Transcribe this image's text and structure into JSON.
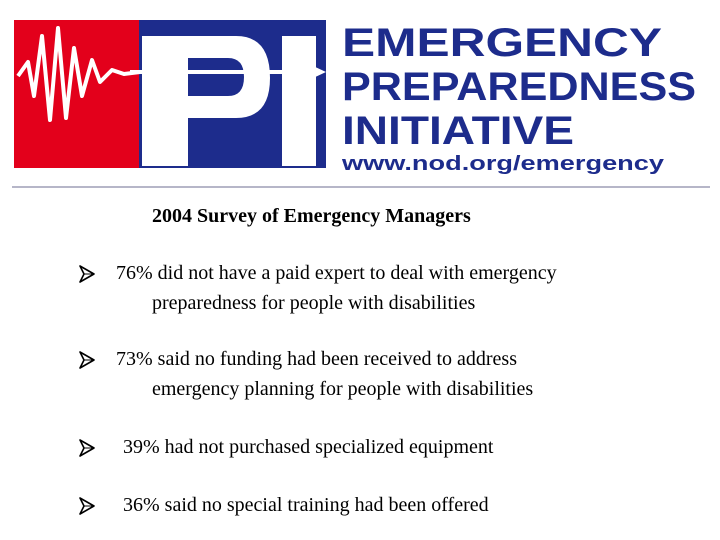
{
  "logo": {
    "title_line1": "EMERGENCY",
    "title_line2": "PREPAREDNESS",
    "title_line3": "INITIATIVE",
    "url": "www.nod.org/emergency",
    "mark_text": "PI",
    "colors": {
      "red": "#e3001b",
      "blue": "#1d2c8c",
      "white": "#ffffff"
    }
  },
  "subtitle": "2004 Survey of Emergency Managers",
  "bullets": [
    {
      "line1": "76% did not have a paid expert to deal with  emergency",
      "line2": "preparedness for people with disabilities"
    },
    {
      "line1": "73% said no funding had been received to address",
      "line2": "emergency planning for people with  disabilities"
    },
    {
      "line1": "39% had not purchased specialized equipment"
    },
    {
      "line1": "36% said no special training had been offered"
    }
  ],
  "bullet_icon": "arrowhead-bullet-icon"
}
